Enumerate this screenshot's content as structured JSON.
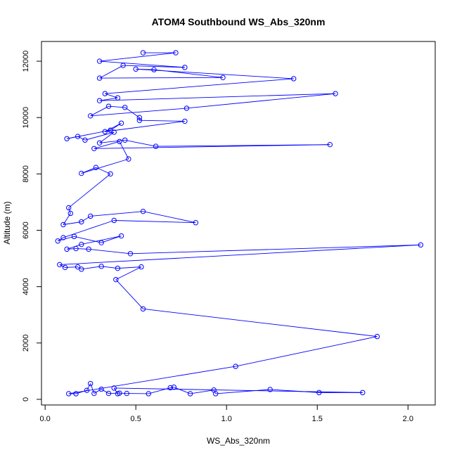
{
  "chart_data": {
    "type": "line",
    "title": "ATOM4 Southbound WS_Abs_320nm",
    "xlabel": "WS_Abs_320nm",
    "ylabel": "Altitude (m)",
    "xlim": [
      -0.02,
      2.15
    ],
    "ylim": [
      -200,
      12700
    ],
    "x_ticks": [
      0.0,
      0.5,
      1.0,
      1.5,
      2.0
    ],
    "x_tick_labels": [
      "0.0",
      "0.5",
      "1.0",
      "1.5",
      "2.0"
    ],
    "y_ticks": [
      0,
      2000,
      4000,
      6000,
      8000,
      10000,
      12000
    ],
    "y_tick_labels": [
      "0",
      "2000",
      "4000",
      "6000",
      "8000",
      "10000",
      "12000"
    ],
    "grid": false,
    "series_color": "#0000ff",
    "marker": "open-circle",
    "series": [
      {
        "name": "",
        "points": [
          [
            0.54,
            12300
          ],
          [
            0.72,
            12300
          ],
          [
            0.3,
            12000
          ],
          [
            0.77,
            11780
          ],
          [
            0.43,
            11850
          ],
          [
            0.3,
            11400
          ],
          [
            0.98,
            11420
          ],
          [
            0.6,
            11700
          ],
          [
            0.5,
            11720
          ],
          [
            1.37,
            11380
          ],
          [
            0.33,
            10850
          ],
          [
            0.4,
            10700
          ],
          [
            0.3,
            10600
          ],
          [
            1.6,
            10850
          ],
          [
            0.78,
            10330
          ],
          [
            0.25,
            10060
          ],
          [
            0.35,
            10400
          ],
          [
            0.44,
            10360
          ],
          [
            0.52,
            10000
          ],
          [
            0.52,
            9900
          ],
          [
            0.77,
            9870
          ],
          [
            0.33,
            9500
          ],
          [
            0.42,
            9800
          ],
          [
            0.36,
            9550
          ],
          [
            0.12,
            9250
          ],
          [
            0.18,
            9330
          ],
          [
            0.22,
            9200
          ],
          [
            0.38,
            9480
          ],
          [
            0.3,
            9100
          ],
          [
            0.44,
            9200
          ],
          [
            0.61,
            8980
          ],
          [
            1.57,
            9040
          ],
          [
            0.27,
            8900
          ],
          [
            0.41,
            9150
          ],
          [
            0.46,
            8530
          ],
          [
            0.2,
            8020
          ],
          [
            0.28,
            8230
          ],
          [
            0.36,
            8000
          ],
          [
            0.13,
            6800
          ],
          [
            0.14,
            6600
          ],
          [
            0.1,
            6200
          ],
          [
            0.2,
            6300
          ],
          [
            0.25,
            6500
          ],
          [
            0.54,
            6670
          ],
          [
            0.83,
            6270
          ],
          [
            0.38,
            6350
          ],
          [
            0.1,
            5740
          ],
          [
            0.07,
            5620
          ],
          [
            0.16,
            5780
          ],
          [
            0.31,
            5560
          ],
          [
            0.42,
            5800
          ],
          [
            0.2,
            5500
          ],
          [
            0.12,
            5330
          ],
          [
            0.17,
            5350
          ],
          [
            0.24,
            5330
          ],
          [
            0.47,
            5170
          ],
          [
            2.07,
            5480
          ],
          [
            0.08,
            4780
          ],
          [
            0.11,
            4680
          ],
          [
            0.18,
            4700
          ],
          [
            0.2,
            4620
          ],
          [
            0.31,
            4720
          ],
          [
            0.4,
            4650
          ],
          [
            0.53,
            4700
          ],
          [
            0.39,
            4250
          ],
          [
            0.54,
            3210
          ],
          [
            1.83,
            2230
          ],
          [
            1.05,
            1170
          ],
          [
            0.13,
            200
          ],
          [
            0.17,
            200
          ],
          [
            0.23,
            320
          ],
          [
            0.25,
            560
          ],
          [
            0.27,
            210
          ],
          [
            0.31,
            360
          ],
          [
            0.35,
            210
          ],
          [
            0.41,
            220
          ],
          [
            0.45,
            210
          ],
          [
            0.57,
            200
          ],
          [
            0.69,
            410
          ],
          [
            0.71,
            430
          ],
          [
            0.8,
            200
          ],
          [
            0.93,
            330
          ],
          [
            0.94,
            200
          ],
          [
            1.24,
            350
          ],
          [
            1.51,
            240
          ],
          [
            1.75,
            240
          ],
          [
            0.38,
            400
          ],
          [
            0.4,
            200
          ]
        ]
      }
    ]
  }
}
